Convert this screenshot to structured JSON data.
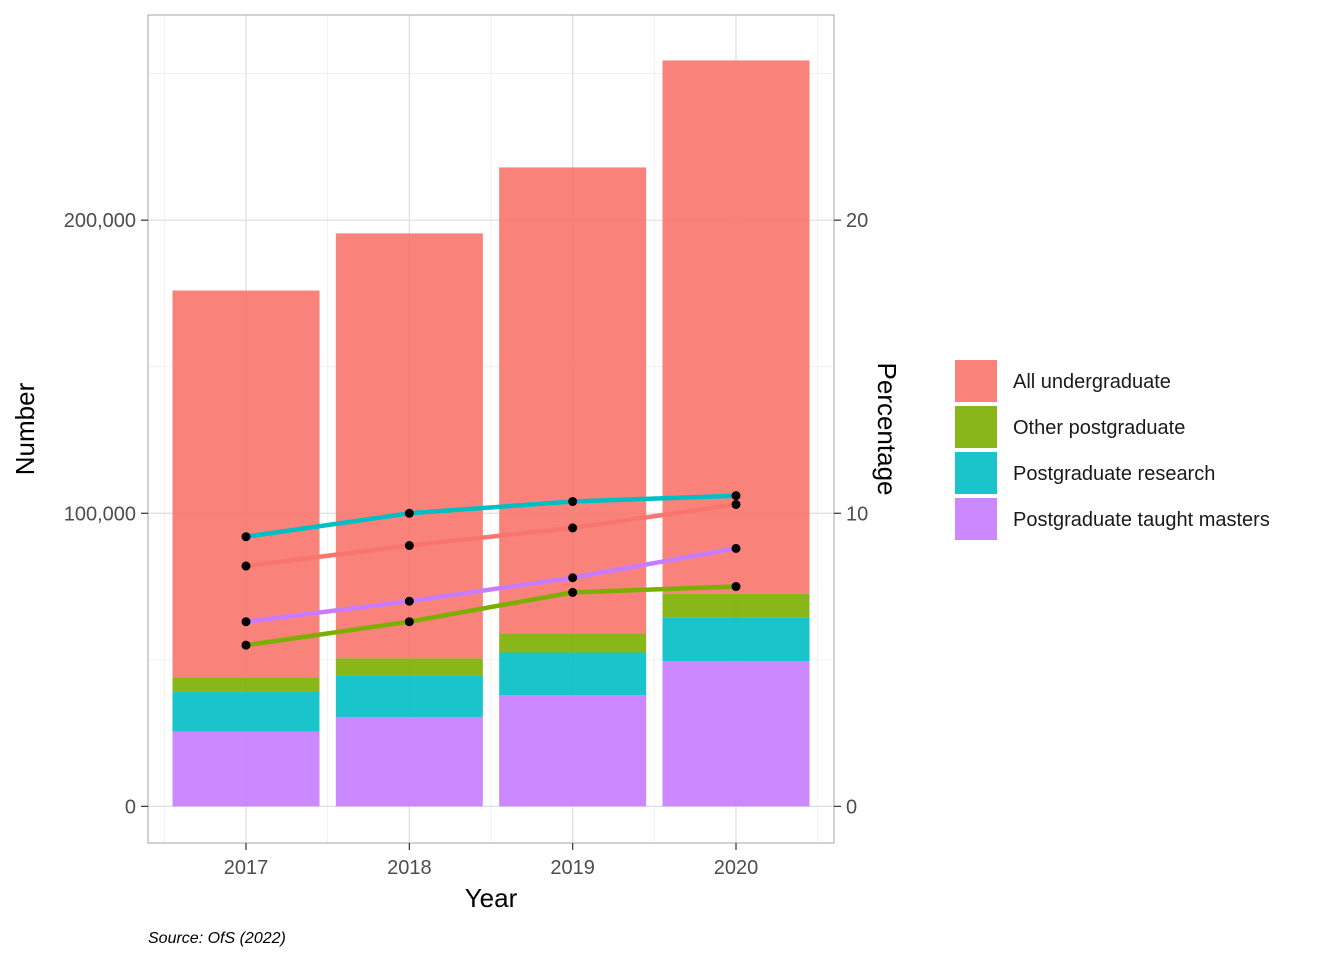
{
  "chart_data": {
    "type": "bar",
    "stacked": true,
    "categories": [
      "2017",
      "2018",
      "2019",
      "2020"
    ],
    "series": [
      {
        "name": "Postgraduate taught masters",
        "color": "#C77CFF",
        "values": [
          25500,
          30500,
          38000,
          49500
        ]
      },
      {
        "name": "Postgraduate research",
        "color": "#00BFC4",
        "values": [
          13500,
          14000,
          14500,
          15000
        ]
      },
      {
        "name": "Other postgraduate",
        "color": "#7CAE00",
        "values": [
          5000,
          6000,
          6500,
          8000
        ]
      },
      {
        "name": "All undergraduate",
        "color": "#F8766D",
        "values": [
          132000,
          145000,
          159000,
          182000
        ]
      }
    ],
    "percentage_lines": [
      {
        "name": "Postgraduate research",
        "color": "#00BFC4",
        "values": [
          9.2,
          10.0,
          10.4,
          10.6
        ]
      },
      {
        "name": "All undergraduate",
        "color": "#F8766D",
        "values": [
          8.2,
          8.9,
          9.5,
          10.3
        ]
      },
      {
        "name": "Postgraduate taught masters",
        "color": "#C77CFF",
        "values": [
          6.3,
          7.0,
          7.8,
          8.8
        ]
      },
      {
        "name": "Other postgraduate",
        "color": "#7CAE00",
        "values": [
          5.5,
          6.3,
          7.3,
          7.5
        ]
      }
    ],
    "xlabel": "Year",
    "ylabel": "Number",
    "y2label": "Percentage",
    "ylim": [
      -12500,
      270000
    ],
    "y2lim": [
      -1.25,
      27.0
    ],
    "yticks": [
      0,
      100000,
      200000
    ],
    "ytick_labels": [
      "0",
      "100,000",
      "200,000"
    ],
    "y2ticks": [
      0,
      10,
      20
    ],
    "y2tick_labels": [
      "0",
      "10",
      "20"
    ],
    "legend": {
      "position": "right",
      "entries": [
        {
          "label": "All undergraduate",
          "color": "#F8766D"
        },
        {
          "label": "Other postgraduate",
          "color": "#7CAE00"
        },
        {
          "label": "Postgraduate research",
          "color": "#00BFC4"
        },
        {
          "label": "Postgraduate taught masters",
          "color": "#C77CFF"
        }
      ]
    },
    "caption": "Source: OfS (2022)",
    "grid": true
  }
}
